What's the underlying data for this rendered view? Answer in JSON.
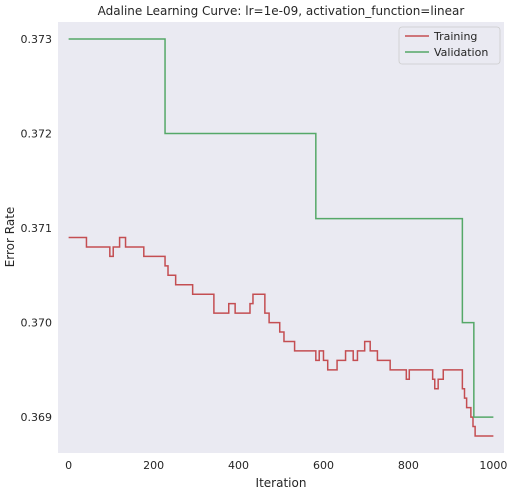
{
  "chart_data": {
    "type": "line",
    "title": "Adaline Learning Curve: lr=1e-09, activation_function=linear",
    "xlabel": "Iteration",
    "ylabel": "Error Rate",
    "xlim": [
      -25,
      1025
    ],
    "ylim": [
      0.36862,
      0.37318
    ],
    "xticks": [
      0,
      200,
      400,
      600,
      800,
      1000
    ],
    "yticks": [
      0.369,
      0.37,
      0.371,
      0.372,
      0.373
    ],
    "ytick_format": 3,
    "grid": false,
    "legend_position": "top-right",
    "background": "#eaeaf2",
    "series": [
      {
        "name": "Training",
        "color": "#c44e52",
        "step": true,
        "points": [
          [
            0,
            0.3709
          ],
          [
            40,
            0.3709
          ],
          [
            42,
            0.3708
          ],
          [
            95,
            0.3708
          ],
          [
            97,
            0.3707
          ],
          [
            103,
            0.3707
          ],
          [
            105,
            0.3708
          ],
          [
            118,
            0.3708
          ],
          [
            120,
            0.3709
          ],
          [
            132,
            0.3709
          ],
          [
            134,
            0.3708
          ],
          [
            175,
            0.3708
          ],
          [
            177,
            0.3707
          ],
          [
            225,
            0.3707
          ],
          [
            227,
            0.3706
          ],
          [
            232,
            0.3706
          ],
          [
            234,
            0.3705
          ],
          [
            250,
            0.3705
          ],
          [
            252,
            0.3704
          ],
          [
            290,
            0.3704
          ],
          [
            292,
            0.3703
          ],
          [
            340,
            0.3703
          ],
          [
            342,
            0.3701
          ],
          [
            375,
            0.3701
          ],
          [
            377,
            0.3702
          ],
          [
            390,
            0.3702
          ],
          [
            392,
            0.3701
          ],
          [
            425,
            0.3701
          ],
          [
            427,
            0.3702
          ],
          [
            432,
            0.3702
          ],
          [
            434,
            0.3703
          ],
          [
            460,
            0.3703
          ],
          [
            462,
            0.3701
          ],
          [
            470,
            0.3701
          ],
          [
            472,
            0.37
          ],
          [
            495,
            0.37
          ],
          [
            497,
            0.3699
          ],
          [
            505,
            0.3699
          ],
          [
            507,
            0.3698
          ],
          [
            530,
            0.3698
          ],
          [
            532,
            0.3697
          ],
          [
            580,
            0.3697
          ],
          [
            582,
            0.3696
          ],
          [
            588,
            0.3696
          ],
          [
            590,
            0.3697
          ],
          [
            598,
            0.3697
          ],
          [
            600,
            0.3696
          ],
          [
            608,
            0.3696
          ],
          [
            610,
            0.3695
          ],
          [
            630,
            0.3695
          ],
          [
            632,
            0.3696
          ],
          [
            650,
            0.3696
          ],
          [
            652,
            0.3697
          ],
          [
            668,
            0.3697
          ],
          [
            670,
            0.3696
          ],
          [
            678,
            0.3696
          ],
          [
            680,
            0.3697
          ],
          [
            695,
            0.3697
          ],
          [
            697,
            0.3698
          ],
          [
            708,
            0.3698
          ],
          [
            710,
            0.3697
          ],
          [
            725,
            0.3697
          ],
          [
            727,
            0.3696
          ],
          [
            755,
            0.3696
          ],
          [
            757,
            0.3695
          ],
          [
            793,
            0.3695
          ],
          [
            795,
            0.3694
          ],
          [
            800,
            0.3694
          ],
          [
            802,
            0.3695
          ],
          [
            855,
            0.3695
          ],
          [
            857,
            0.3694
          ],
          [
            860,
            0.3694
          ],
          [
            862,
            0.3693
          ],
          [
            868,
            0.3693
          ],
          [
            870,
            0.3694
          ],
          [
            880,
            0.3694
          ],
          [
            882,
            0.3695
          ],
          [
            925,
            0.3695
          ],
          [
            927,
            0.3693
          ],
          [
            930,
            0.3693
          ],
          [
            932,
            0.3692
          ],
          [
            935,
            0.3692
          ],
          [
            937,
            0.3691
          ],
          [
            945,
            0.3691
          ],
          [
            947,
            0.369
          ],
          [
            950,
            0.369
          ],
          [
            952,
            0.3689
          ],
          [
            955,
            0.3689
          ],
          [
            957,
            0.3688
          ],
          [
            1000,
            0.3688
          ]
        ]
      },
      {
        "name": "Validation",
        "color": "#55a868",
        "step": true,
        "points": [
          [
            0,
            0.373
          ],
          [
            225,
            0.373
          ],
          [
            227,
            0.372
          ],
          [
            580,
            0.372
          ],
          [
            582,
            0.3711
          ],
          [
            925,
            0.3711
          ],
          [
            927,
            0.37
          ],
          [
            952,
            0.37
          ],
          [
            954,
            0.369
          ],
          [
            1000,
            0.369
          ]
        ]
      }
    ]
  }
}
